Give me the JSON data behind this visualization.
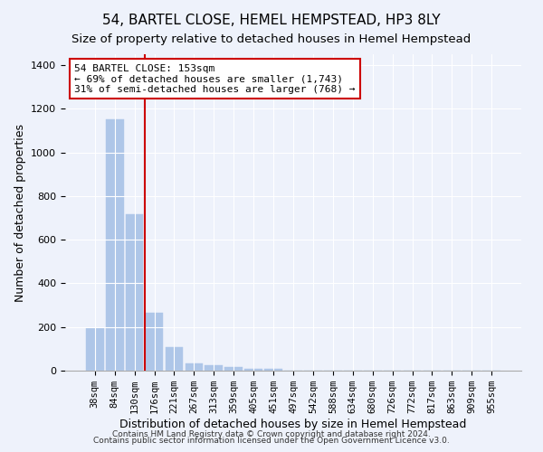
{
  "title": "54, BARTEL CLOSE, HEMEL HEMPSTEAD, HP3 8LY",
  "subtitle": "Size of property relative to detached houses in Hemel Hempstead",
  "xlabel": "Distribution of detached houses by size in Hemel Hempstead",
  "ylabel": "Number of detached properties",
  "footer_line1": "Contains HM Land Registry data © Crown copyright and database right 2024.",
  "footer_line2": "Contains public sector information licensed under the Open Government Licence v3.0.",
  "bar_labels": [
    "38sqm",
    "84sqm",
    "130sqm",
    "176sqm",
    "221sqm",
    "267sqm",
    "313sqm",
    "359sqm",
    "405sqm",
    "451sqm",
    "497sqm",
    "542sqm",
    "588sqm",
    "634sqm",
    "680sqm",
    "726sqm",
    "772sqm",
    "817sqm",
    "863sqm",
    "909sqm",
    "955sqm"
  ],
  "bar_values": [
    193,
    1150,
    718,
    265,
    107,
    33,
    26,
    15,
    7,
    10,
    0,
    0,
    0,
    0,
    0,
    0,
    0,
    0,
    0,
    0,
    0
  ],
  "bar_color": "#aec6e8",
  "bar_edge_color": "#aec6e8",
  "property_line_x": 2.5,
  "annotation_line1": "54 BARTEL CLOSE: 153sqm",
  "annotation_line2": "← 69% of detached houses are smaller (1,743)",
  "annotation_line3": "31% of semi-detached houses are larger (768) →",
  "annotation_box_color": "#ffffff",
  "annotation_border_color": "#cc0000",
  "red_line_color": "#cc0000",
  "ylim": [
    0,
    1450
  ],
  "yticks": [
    0,
    200,
    400,
    600,
    800,
    1000,
    1200,
    1400
  ],
  "background_color": "#eef2fb",
  "plot_background": "#eef2fb",
  "grid_color": "#ffffff",
  "title_fontsize": 11,
  "subtitle_fontsize": 9.5,
  "axis_label_fontsize": 9,
  "tick_fontsize": 8,
  "footer_fontsize": 6.5
}
